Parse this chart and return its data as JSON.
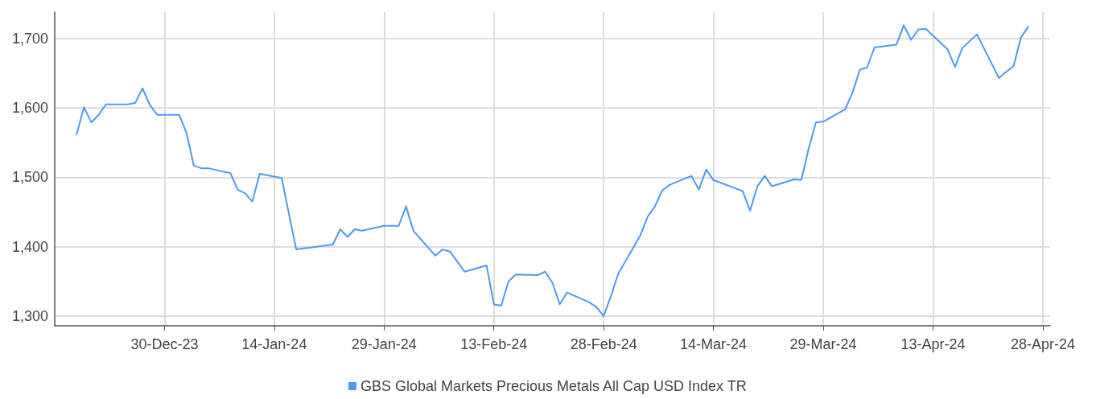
{
  "chart_data": {
    "type": "line",
    "xlim": [
      "2023-12-15",
      "2024-04-29"
    ],
    "xticks": [
      {
        "value": "2023-12-30",
        "label": "30-Dec-23"
      },
      {
        "value": "2024-01-14",
        "label": "14-Jan-24"
      },
      {
        "value": "2024-01-29",
        "label": "29-Jan-24"
      },
      {
        "value": "2024-02-13",
        "label": "13-Feb-24"
      },
      {
        "value": "2024-02-28",
        "label": "28-Feb-24"
      },
      {
        "value": "2024-03-14",
        "label": "14-Mar-24"
      },
      {
        "value": "2024-03-29",
        "label": "29-Mar-24"
      },
      {
        "value": "2024-04-13",
        "label": "13-Apr-24"
      },
      {
        "value": "2024-04-28",
        "label": "28-Apr-24"
      }
    ],
    "ylim": [
      1286,
      1738
    ],
    "yticks": [
      {
        "value": 1300,
        "label": "1,300"
      },
      {
        "value": 1400,
        "label": "1,400"
      },
      {
        "value": 1500,
        "label": "1,500"
      },
      {
        "value": 1600,
        "label": "1,600"
      },
      {
        "value": 1700,
        "label": "1,700"
      }
    ],
    "grid": true,
    "legend": "bottom",
    "marker": "none",
    "line_style": "solid",
    "x": [
      "2023-12-18",
      "2023-12-19",
      "2023-12-20",
      "2023-12-21",
      "2023-12-22",
      "2023-12-25",
      "2023-12-26",
      "2023-12-27",
      "2023-12-28",
      "2023-12-29",
      "2024-01-01",
      "2024-01-02",
      "2024-01-03",
      "2024-01-04",
      "2024-01-05",
      "2024-01-08",
      "2024-01-09",
      "2024-01-10",
      "2024-01-11",
      "2024-01-12",
      "2024-01-15",
      "2024-01-17",
      "2024-01-22",
      "2024-01-23",
      "2024-01-24",
      "2024-01-25",
      "2024-01-26",
      "2024-01-29",
      "2024-01-31",
      "2024-02-01",
      "2024-02-02",
      "2024-02-05",
      "2024-02-06",
      "2024-02-07",
      "2024-02-09",
      "2024-02-12",
      "2024-02-13",
      "2024-02-14",
      "2024-02-15",
      "2024-02-16",
      "2024-02-19",
      "2024-02-20",
      "2024-02-21",
      "2024-02-22",
      "2024-02-23",
      "2024-02-26",
      "2024-02-27",
      "2024-02-28",
      "2024-02-29",
      "2024-03-01",
      "2024-03-04",
      "2024-03-05",
      "2024-03-06",
      "2024-03-07",
      "2024-03-08",
      "2024-03-11",
      "2024-03-12",
      "2024-03-13",
      "2024-03-14",
      "2024-03-18",
      "2024-03-19",
      "2024-03-20",
      "2024-03-21",
      "2024-03-22",
      "2024-03-25",
      "2024-03-26",
      "2024-03-27",
      "2024-03-28",
      "2024-03-29",
      "2024-04-01",
      "2024-04-02",
      "2024-04-03",
      "2024-04-04",
      "2024-04-05",
      "2024-04-08",
      "2024-04-09",
      "2024-04-10",
      "2024-04-11",
      "2024-04-12",
      "2024-04-15",
      "2024-04-16",
      "2024-04-17",
      "2024-04-19",
      "2024-04-22",
      "2024-04-23",
      "2024-04-24",
      "2024-04-25",
      "2024-04-26"
    ],
    "series": [
      {
        "name": "GBS Global Markets Precious Metals All Cap USD Index TR",
        "color": "#4e9af5",
        "values": [
          1562,
          1601,
          1579,
          1590,
          1605,
          1605,
          1607,
          1628,
          1604,
          1590,
          1590,
          1564,
          1517,
          1513,
          1513,
          1506,
          1482,
          1477,
          1465,
          1505,
          1499,
          1396,
          1403,
          1425,
          1414,
          1425,
          1423,
          1430,
          1430,
          1458,
          1423,
          1387,
          1396,
          1393,
          1364,
          1373,
          1317,
          1315,
          1350,
          1360,
          1359,
          1364,
          1348,
          1317,
          1334,
          1320,
          1313,
          1300,
          1329,
          1361,
          1416,
          1443,
          1458,
          1481,
          1489,
          1502,
          1482,
          1511,
          1496,
          1480,
          1452,
          1487,
          1502,
          1487,
          1497,
          1496,
          1541,
          1579,
          1580,
          1598,
          1622,
          1655,
          1658,
          1687,
          1691,
          1719,
          1698,
          1713,
          1714,
          1684,
          1659,
          1686,
          1706,
          1643,
          1652,
          1660,
          1701,
          1717
        ]
      }
    ]
  }
}
